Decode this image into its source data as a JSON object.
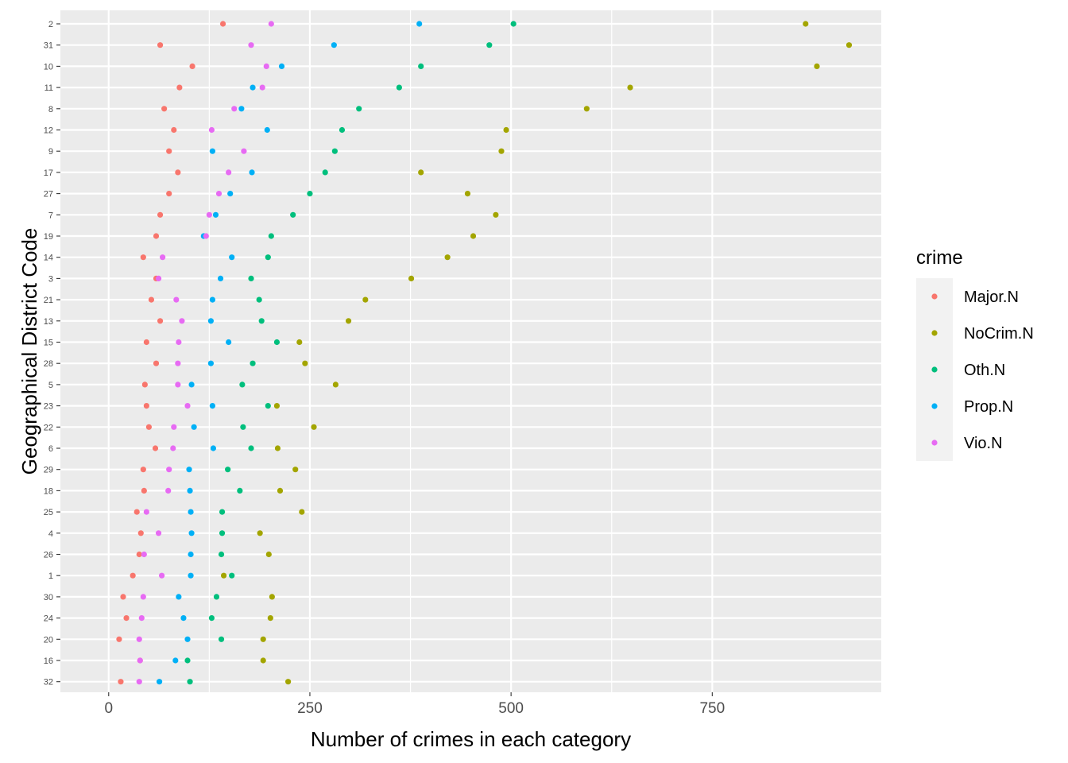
{
  "chart_data": {
    "type": "scatter",
    "title": "",
    "xlabel": "Number of crimes in each category",
    "ylabel": "Geographical District Code",
    "xlim": [
      -60,
      960
    ],
    "x_ticks": [
      0,
      250,
      500,
      750
    ],
    "grid": true,
    "legend": {
      "title": "crime",
      "placement": "right"
    },
    "categories": [
      "2",
      "31",
      "10",
      "11",
      "8",
      "12",
      "9",
      "17",
      "27",
      "7",
      "19",
      "14",
      "3",
      "21",
      "13",
      "15",
      "28",
      "5",
      "23",
      "22",
      "6",
      "29",
      "18",
      "25",
      "4",
      "26",
      "1",
      "30",
      "24",
      "20",
      "16",
      "32"
    ],
    "series": [
      {
        "name": "Major.N",
        "color": "#F8766D",
        "values": [
          142,
          64,
          104,
          88,
          69,
          81,
          75,
          86,
          75,
          64,
          59,
          43,
          59,
          53,
          64,
          47,
          59,
          45,
          47,
          50,
          58,
          43,
          44,
          35,
          40,
          38,
          30,
          18,
          22,
          13,
          39,
          15
        ]
      },
      {
        "name": "NoCrim.N",
        "color": "#A3A500",
        "values": [
          866,
          920,
          880,
          648,
          594,
          494,
          488,
          388,
          446,
          481,
          453,
          421,
          376,
          319,
          298,
          237,
          244,
          282,
          209,
          255,
          210,
          232,
          213,
          240,
          188,
          199,
          143,
          203,
          201,
          192,
          192,
          223
        ]
      },
      {
        "name": "Oth.N",
        "color": "#00BF7D",
        "values": [
          503,
          473,
          388,
          361,
          311,
          290,
          281,
          269,
          250,
          229,
          202,
          198,
          177,
          187,
          190,
          209,
          179,
          166,
          198,
          167,
          177,
          148,
          163,
          141,
          141,
          140,
          153,
          134,
          128,
          140,
          98,
          101
        ]
      },
      {
        "name": "Prop.N",
        "color": "#00B0F6",
        "values": [
          386,
          280,
          215,
          179,
          165,
          197,
          129,
          178,
          151,
          133,
          118,
          153,
          139,
          129,
          127,
          149,
          127,
          103,
          129,
          106,
          130,
          100,
          101,
          102,
          103,
          102,
          102,
          87,
          93,
          98,
          83,
          63
        ]
      },
      {
        "name": "Vio.N",
        "color": "#E76BF3",
        "values": [
          202,
          177,
          196,
          191,
          156,
          128,
          168,
          149,
          137,
          125,
          121,
          67,
          62,
          84,
          91,
          87,
          86,
          86,
          98,
          81,
          80,
          75,
          74,
          47,
          62,
          44,
          66,
          43,
          41,
          38,
          39,
          38
        ]
      }
    ]
  }
}
